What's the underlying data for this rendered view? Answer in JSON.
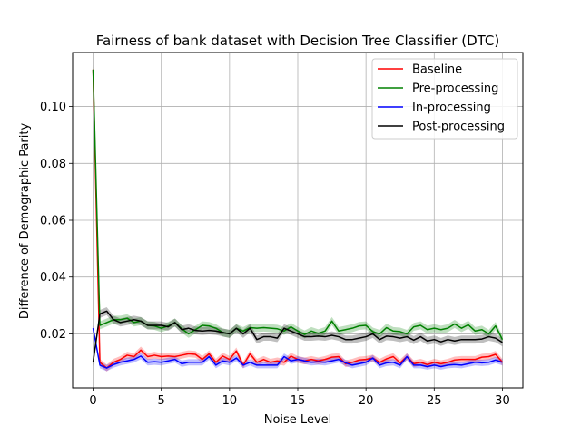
{
  "chart_data": {
    "type": "line",
    "title": "Fairness of bank dataset with Decision Tree Classifier (DTC)",
    "xlabel": "Noise Level",
    "ylabel": "Difference of Demographic Parity",
    "xlim": [
      -1.5,
      31.5
    ],
    "ylim": [
      0.001,
      0.119
    ],
    "xticks": [
      0,
      5,
      10,
      15,
      20,
      25,
      30
    ],
    "yticks": [
      0.02,
      0.04,
      0.06,
      0.08,
      0.1
    ],
    "ytick_labels": [
      "0.02",
      "0.04",
      "0.06",
      "0.08",
      "0.10"
    ],
    "grid": true,
    "legend_position": "top-right",
    "x": [
      0,
      0.5,
      1,
      1.5,
      2,
      2.5,
      3,
      3.5,
      4,
      4.5,
      5,
      5.5,
      6,
      6.5,
      7,
      7.5,
      8,
      8.5,
      9,
      9.5,
      10,
      10.5,
      11,
      11.5,
      12,
      12.5,
      13,
      13.5,
      14,
      14.5,
      15,
      15.5,
      16,
      16.5,
      17,
      17.5,
      18,
      18.5,
      19,
      19.5,
      20,
      20.5,
      21,
      21.5,
      22,
      22.5,
      23,
      23.5,
      24,
      24.5,
      25,
      25.5,
      26,
      26.5,
      27,
      27.5,
      28,
      28.5,
      29,
      29.5,
      30
    ],
    "series": [
      {
        "name": "Baseline",
        "color": "#ff0000",
        "band": 0.0012,
        "values": [
          0.113,
          0.01,
          0.008,
          0.01,
          0.011,
          0.0125,
          0.012,
          0.0143,
          0.012,
          0.0125,
          0.012,
          0.0122,
          0.012,
          0.0125,
          0.013,
          0.0128,
          0.011,
          0.013,
          0.01,
          0.0122,
          0.011,
          0.014,
          0.009,
          0.013,
          0.01,
          0.011,
          0.01,
          0.0105,
          0.01,
          0.0122,
          0.011,
          0.0105,
          0.011,
          0.0105,
          0.011,
          0.0118,
          0.012,
          0.0095,
          0.01,
          0.0108,
          0.011,
          0.0115,
          0.01,
          0.0112,
          0.012,
          0.0098,
          0.012,
          0.0095,
          0.01,
          0.0092,
          0.01,
          0.0095,
          0.01,
          0.0108,
          0.011,
          0.011,
          0.011,
          0.0118,
          0.012,
          0.0128,
          0.01
        ]
      },
      {
        "name": "Pre-processing",
        "color": "#008000",
        "band": 0.0014,
        "values": [
          0.113,
          0.023,
          0.024,
          0.025,
          0.025,
          0.0255,
          0.024,
          0.0245,
          0.023,
          0.0228,
          0.022,
          0.0228,
          0.024,
          0.0218,
          0.02,
          0.0215,
          0.023,
          0.0228,
          0.022,
          0.0205,
          0.02,
          0.022,
          0.021,
          0.0222,
          0.022,
          0.0222,
          0.022,
          0.0218,
          0.021,
          0.0225,
          0.021,
          0.0198,
          0.021,
          0.0202,
          0.021,
          0.0245,
          0.021,
          0.0215,
          0.022,
          0.0228,
          0.023,
          0.0208,
          0.02,
          0.0222,
          0.021,
          0.0208,
          0.02,
          0.0225,
          0.023,
          0.0215,
          0.022,
          0.0215,
          0.022,
          0.0235,
          0.022,
          0.0232,
          0.021,
          0.0215,
          0.02,
          0.0228,
          0.018
        ]
      },
      {
        "name": "In-processing",
        "color": "#0000ff",
        "band": 0.0011,
        "values": [
          0.022,
          0.009,
          0.008,
          0.0092,
          0.01,
          0.0105,
          0.011,
          0.0122,
          0.01,
          0.0102,
          0.01,
          0.0105,
          0.011,
          0.0095,
          0.01,
          0.01,
          0.01,
          0.012,
          0.009,
          0.0105,
          0.01,
          0.0115,
          0.009,
          0.01,
          0.009,
          0.009,
          0.009,
          0.009,
          0.012,
          0.0105,
          0.011,
          0.0105,
          0.01,
          0.0102,
          0.01,
          0.0105,
          0.011,
          0.0098,
          0.009,
          0.0095,
          0.01,
          0.0115,
          0.009,
          0.0098,
          0.01,
          0.009,
          0.012,
          0.009,
          0.009,
          0.0085,
          0.009,
          0.0085,
          0.009,
          0.0092,
          0.009,
          0.0095,
          0.01,
          0.0098,
          0.01,
          0.0108,
          0.01
        ]
      },
      {
        "name": "Post-processing",
        "color": "#000000",
        "band": 0.0014,
        "values": [
          0.01,
          0.027,
          0.028,
          0.025,
          0.024,
          0.0245,
          0.025,
          0.0245,
          0.023,
          0.023,
          0.023,
          0.0225,
          0.024,
          0.0215,
          0.022,
          0.0212,
          0.021,
          0.0212,
          0.021,
          0.0205,
          0.02,
          0.022,
          0.02,
          0.022,
          0.018,
          0.019,
          0.019,
          0.0185,
          0.022,
          0.021,
          0.02,
          0.019,
          0.019,
          0.0192,
          0.019,
          0.0195,
          0.019,
          0.018,
          0.018,
          0.0185,
          0.019,
          0.02,
          0.018,
          0.0192,
          0.019,
          0.0185,
          0.019,
          0.0178,
          0.019,
          0.0175,
          0.018,
          0.0172,
          0.018,
          0.0175,
          0.018,
          0.018,
          0.018,
          0.0182,
          0.019,
          0.0185,
          0.017
        ]
      }
    ]
  }
}
